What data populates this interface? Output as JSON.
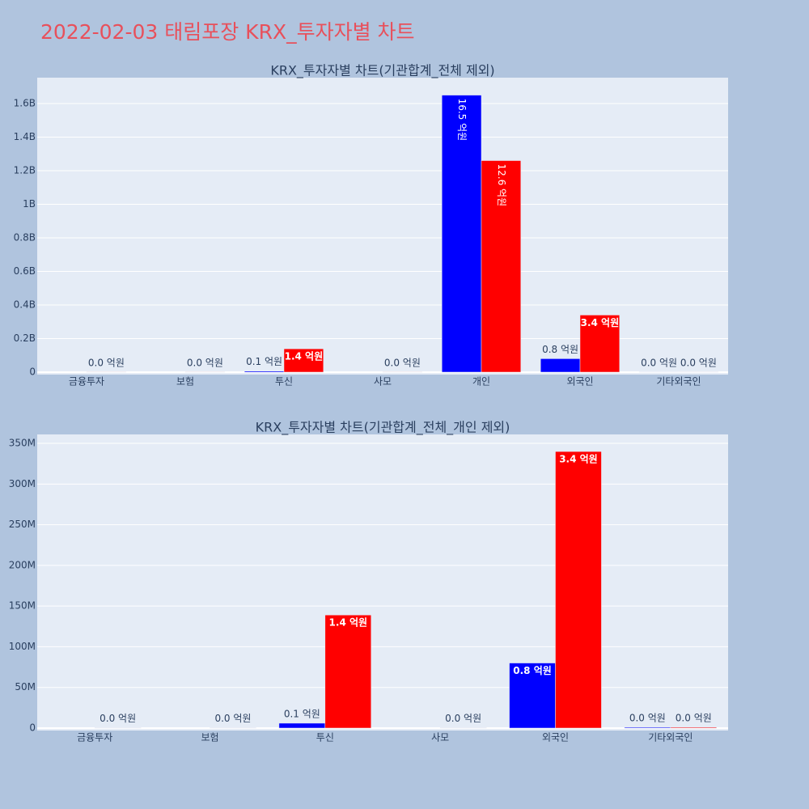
{
  "title": "2022-02-03 태림포장 KRX_투자자별 차트",
  "chart_data": [
    {
      "type": "bar",
      "title": "KRX_투자자별 차트(기관합계_전체 제외)",
      "categories": [
        "금융투자",
        "보험",
        "투신",
        "사모",
        "개인",
        "외국인",
        "기타외국인"
      ],
      "series": [
        {
          "color": "#0000ff",
          "values": [
            null,
            null,
            6000000,
            null,
            1650000000,
            80000000,
            1000000
          ],
          "value_labels": [
            null,
            null,
            "0.1 억원",
            null,
            "16.5 억원",
            "0.8 억원",
            "0.0 억원"
          ]
        },
        {
          "color": "#ff0000",
          "values": [
            500000,
            500000,
            139000000,
            500000,
            1260000000,
            340000000,
            1000000
          ],
          "value_labels": [
            "0.0 억원",
            "0.0 억원",
            "1.4 억원",
            "0.0 억원",
            "12.6 억원",
            "3.4 억원",
            "0.0 억원"
          ]
        }
      ],
      "ylim": [
        -14500000,
        1754000000
      ],
      "yticks": [
        0,
        {
          "value": 200000000,
          "label": "0.2B"
        },
        {
          "value": 400000000,
          "label": "0.4B"
        },
        {
          "value": 600000000,
          "label": "0.6B"
        },
        {
          "value": 800000000,
          "label": "0.8B"
        },
        {
          "value": 1000000000,
          "label": "1B"
        },
        {
          "value": 1200000000,
          "label": "1.2B"
        },
        {
          "value": 1400000000,
          "label": "1.4B"
        },
        {
          "value": 1600000000,
          "label": "1.6B"
        }
      ],
      "grid": true
    },
    {
      "type": "bar",
      "title": "KRX_투자자별 차트(기관합계_전체_개인 제외)",
      "categories": [
        "금융투자",
        "보험",
        "투신",
        "사모",
        "외국인",
        "기타외국인"
      ],
      "series": [
        {
          "color": "#0000ff",
          "values": [
            null,
            null,
            6000000,
            null,
            80000000,
            1000000
          ],
          "value_labels": [
            null,
            null,
            "0.1 억원",
            null,
            "0.8 억원",
            "0.0 억원"
          ]
        },
        {
          "color": "#ff0000",
          "values": [
            500000,
            500000,
            139000000,
            500000,
            340000000,
            1000000
          ],
          "value_labels": [
            "0.0 억원",
            "0.0 억원",
            "1.4 억원",
            "0.0 억원",
            "3.4 억원",
            "0.0 억원"
          ]
        }
      ],
      "ylim": [
        -3000000,
        361000000
      ],
      "yticks": [
        0,
        {
          "value": 50000000,
          "label": "50M"
        },
        {
          "value": 100000000,
          "label": "100M"
        },
        {
          "value": 150000000,
          "label": "150M"
        },
        {
          "value": 200000000,
          "label": "200M"
        },
        {
          "value": 250000000,
          "label": "250M"
        },
        {
          "value": 300000000,
          "label": "300M"
        },
        {
          "value": 350000000,
          "label": "350M"
        }
      ],
      "grid": true
    }
  ]
}
